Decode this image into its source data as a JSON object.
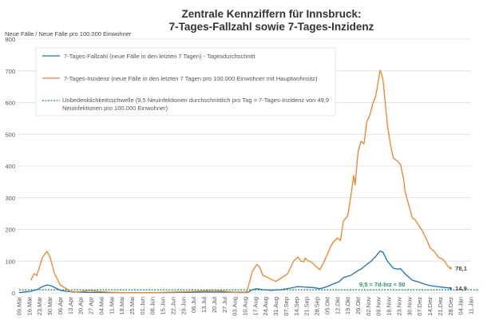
{
  "chart_data": {
    "type": "line",
    "title": [
      "Zentrale Kennziffern für Innsbruck:",
      "7-Tages-Fallzahl sowie 7-Tages-Inzidenz"
    ],
    "ylabel": "Neue Fälle / Neue Fälle pro 100.000 Einwohner",
    "ylim": [
      0,
      800
    ],
    "yticks": [
      0,
      100,
      200,
      300,
      400,
      500,
      600,
      700,
      800
    ],
    "xlim": [
      0,
      308
    ],
    "xtick_step_days": 7,
    "xticks": [
      "09.Mär",
      "16.Mär",
      "23.Mär",
      "30.Mär",
      "06.Apr",
      "13.Apr",
      "20.Apr",
      "27.Apr",
      "04.Mai",
      "11.Mai",
      "18.Mai",
      "25.Mai",
      "01.Jun",
      "08.Jun",
      "15.Jun",
      "22.Jun",
      "29.Jun",
      "06.Jul",
      "13.Jul",
      "20.Jul",
      "27.Jul",
      "03.Aug",
      "10.Aug",
      "17.Aug",
      "24.Aug",
      "31.Aug",
      "07.Sep",
      "14.Sep",
      "21.Sep",
      "28.Sep",
      "05.Okt",
      "12.Okt",
      "19.Okt",
      "26.Okt",
      "02.Nov",
      "09.Nov",
      "16.Nov",
      "23.Nov",
      "30.Nov",
      "07.Dez",
      "14.Dez",
      "21.Dez",
      "28.Dez",
      "04.Jän",
      "11.Jän"
    ],
    "grid": "horizontal",
    "legend_placement": "top-left",
    "series": [
      {
        "name": "7-Tages-Fallzahl (neue Fälle in den letzten 7 Tagen) - Tagesdurchschnitt",
        "color": "#1f6fc5",
        "end_label": "14,9",
        "points": [
          [
            0,
            1
          ],
          [
            4,
            3
          ],
          [
            8,
            5
          ],
          [
            12,
            10
          ],
          [
            16,
            20
          ],
          [
            19,
            25
          ],
          [
            22,
            22
          ],
          [
            25,
            15
          ],
          [
            28,
            8
          ],
          [
            32,
            5
          ],
          [
            38,
            3
          ],
          [
            45,
            2
          ],
          [
            60,
            1
          ],
          [
            100,
            1
          ],
          [
            130,
            3
          ],
          [
            150,
            2
          ],
          [
            156,
            2
          ],
          [
            159,
            10
          ],
          [
            162,
            13
          ],
          [
            166,
            10
          ],
          [
            172,
            8
          ],
          [
            178,
            10
          ],
          [
            185,
            15
          ],
          [
            190,
            20
          ],
          [
            195,
            18
          ],
          [
            200,
            17
          ],
          [
            205,
            13
          ],
          [
            210,
            20
          ],
          [
            214,
            28
          ],
          [
            218,
            35
          ],
          [
            221,
            48
          ],
          [
            226,
            55
          ],
          [
            230,
            68
          ],
          [
            233,
            75
          ],
          [
            237,
            90
          ],
          [
            240,
            100
          ],
          [
            243,
            115
          ],
          [
            246,
            132
          ],
          [
            248,
            128
          ],
          [
            251,
            100
          ],
          [
            255,
            78
          ],
          [
            258,
            75
          ],
          [
            260,
            76
          ],
          [
            263,
            60
          ],
          [
            268,
            40
          ],
          [
            272,
            35
          ],
          [
            276,
            28
          ],
          [
            280,
            23
          ],
          [
            285,
            20
          ],
          [
            290,
            17
          ],
          [
            294,
            14.9
          ]
        ]
      },
      {
        "name": "7-Tages-Inzidenz (neue Fälle in den letzten 7 Tagen pro 100.000 Einwohner mit Hauptwohnsitz)",
        "color": "#f58220",
        "end_label": "78,1",
        "points": [
          [
            8,
            40
          ],
          [
            10,
            60
          ],
          [
            12,
            55
          ],
          [
            16,
            113
          ],
          [
            19,
            131
          ],
          [
            21,
            113
          ],
          [
            24,
            63
          ],
          [
            28,
            25
          ],
          [
            32,
            13
          ],
          [
            36,
            2
          ],
          [
            42,
            4
          ],
          [
            48,
            8
          ],
          [
            55,
            4
          ],
          [
            62,
            2
          ],
          [
            70,
            1
          ],
          [
            80,
            1
          ],
          [
            90,
            1
          ],
          [
            100,
            2
          ],
          [
            110,
            3
          ],
          [
            120,
            5
          ],
          [
            125,
            6
          ],
          [
            132,
            8
          ],
          [
            138,
            6
          ],
          [
            145,
            3
          ],
          [
            150,
            1
          ],
          [
            155,
            1
          ],
          [
            159,
            68
          ],
          [
            162,
            90
          ],
          [
            164,
            80
          ],
          [
            166,
            55
          ],
          [
            168,
            52
          ],
          [
            172,
            42
          ],
          [
            175,
            36
          ],
          [
            179,
            48
          ],
          [
            183,
            60
          ],
          [
            187,
            100
          ],
          [
            190,
            113
          ],
          [
            192,
            100
          ],
          [
            194,
            98
          ],
          [
            195,
            110
          ],
          [
            197,
            100
          ],
          [
            199,
            98
          ],
          [
            202,
            85
          ],
          [
            205,
            73
          ],
          [
            208,
            100
          ],
          [
            212,
            143
          ],
          [
            214,
            160
          ],
          [
            217,
            173
          ],
          [
            219,
            165
          ],
          [
            221,
            226
          ],
          [
            224,
            244
          ],
          [
            226,
            302
          ],
          [
            228,
            370
          ],
          [
            229,
            340
          ],
          [
            231,
            445
          ],
          [
            233,
            478
          ],
          [
            235,
            470
          ],
          [
            237,
            541
          ],
          [
            239,
            560
          ],
          [
            241,
            596
          ],
          [
            243,
            620
          ],
          [
            244,
            646
          ],
          [
            246,
            702
          ],
          [
            247,
            690
          ],
          [
            248,
            672
          ],
          [
            251,
            528
          ],
          [
            253,
            470
          ],
          [
            255,
            425
          ],
          [
            258,
            415
          ],
          [
            260,
            403
          ],
          [
            262,
            360
          ],
          [
            263,
            320
          ],
          [
            266,
            270
          ],
          [
            268,
            236
          ],
          [
            270,
            230
          ],
          [
            272,
            215
          ],
          [
            275,
            194
          ],
          [
            278,
            165
          ],
          [
            280,
            143
          ],
          [
            283,
            130
          ],
          [
            286,
            111
          ],
          [
            288,
            108
          ],
          [
            290,
            100
          ],
          [
            292,
            85
          ],
          [
            294,
            78.1
          ]
        ]
      },
      {
        "name": "Unbedenklichkeitsschwelle (9,5 Neuinfektionen durchschnittlich pro Tag = 7-Tages-Inzidenz von 49,9",
        "name_line2": "Neuinfektionen pro 100.000 Einwohner)",
        "color": "#1f9a5a",
        "value": 9.5,
        "annotation": "9,5 = 7d-Inz < 50"
      }
    ]
  }
}
